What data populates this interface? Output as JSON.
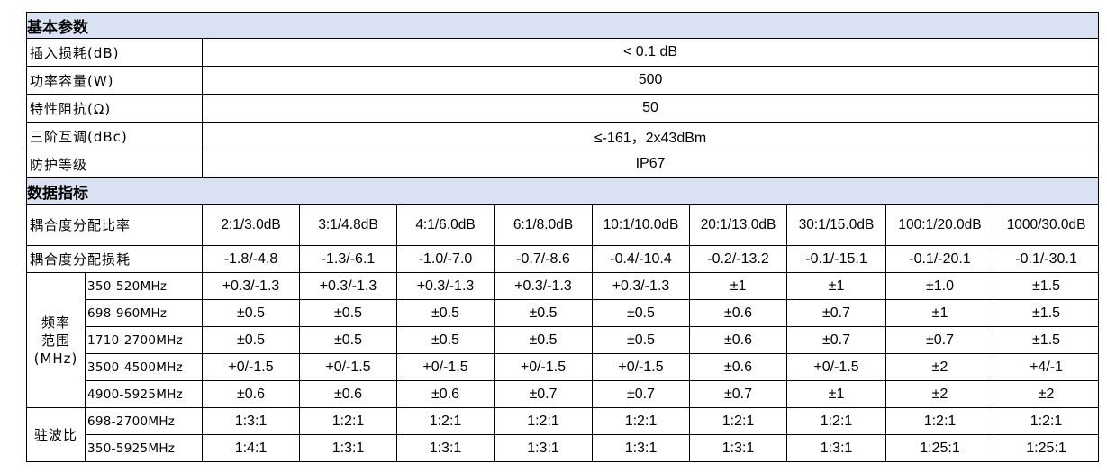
{
  "basic": {
    "title": "基本参数",
    "rows": [
      {
        "label": "插入损耗(dB)",
        "value": "< 0.1 dB"
      },
      {
        "label": "功率容量(W)",
        "value": "500"
      },
      {
        "label": "特性阻抗(Ω)",
        "value": "50"
      },
      {
        "label": "三阶互调(dBc)",
        "value": "≤-161，2x43dBm"
      },
      {
        "label": "防护等级",
        "value": "IP67"
      }
    ]
  },
  "data": {
    "title": "数据指标",
    "ratio_label": "耦合度分配比率",
    "ratios": [
      "2:1/3.0dB",
      "3:1/4.8dB",
      "4:1/6.0dB",
      "6:1/8.0dB",
      "10:1/10.0dB",
      "20:1/13.0dB",
      "30:1/15.0dB",
      "100:1/20.0dB",
      "1000/30.0dB"
    ],
    "loss_label": "耦合度分配损耗",
    "losses": [
      "-1.8/-4.8",
      "-1.3/-6.1",
      "-1.0/-7.0",
      "-0.7/-8.6",
      "-0.4/-10.4",
      "-0.2/-13.2",
      "-0.1/-15.1",
      "-0.1/-20.1",
      "-0.1/-30.1"
    ],
    "freq_group": {
      "l1": "频率",
      "l2": "范围",
      "l3": "(MHz)",
      "bands": [
        {
          "band": "350-520MHz",
          "values": [
            "+0.3/-1.3",
            "+0.3/-1.3",
            "+0.3/-1.3",
            "+0.3/-1.3",
            "+0.3/-1.3",
            "±1",
            "±1",
            "±1.0",
            "±1.5"
          ]
        },
        {
          "band": "698-960MHz",
          "values": [
            "±0.5",
            "±0.5",
            "±0.5",
            "±0.5",
            "±0.5",
            "±0.6",
            "±0.7",
            "±1",
            "±1.5"
          ]
        },
        {
          "band": "1710-2700MHz",
          "values": [
            "±0.5",
            "±0.5",
            "±0.5",
            "±0.5",
            "±0.5",
            "±0.6",
            "±0.7",
            "±0.7",
            "±1.5"
          ]
        },
        {
          "band": "3500-4500MHz",
          "values": [
            "+0/-1.5",
            "+0/-1.5",
            "+0/-1.5",
            "+0/-1.5",
            "+0/-1.5",
            "±0.6",
            "+0/-1.5",
            "±2",
            "+4/-1"
          ]
        },
        {
          "band": "4900-5925MHz",
          "values": [
            "±0.6",
            "±0.6",
            "±0.6",
            "±0.7",
            "±0.7",
            "±0.7",
            "±1",
            "±2",
            "±2"
          ]
        }
      ]
    },
    "vswr_group": {
      "label": "驻波比",
      "bands": [
        {
          "band": "698-2700MHz",
          "values": [
            "1:3:1",
            "1:2:1",
            "1:2:1",
            "1:2:1",
            "1:2:1",
            "1:2:1",
            "1:2:1",
            "1:2:1",
            "1:2:1"
          ]
        },
        {
          "band": "350-5925MHz",
          "values": [
            "1:4:1",
            "1:3:1",
            "1:3:1",
            "1:3:1",
            "1:3:1",
            "1:3:1",
            "1:3:1",
            "1:25:1",
            "1:25:1"
          ]
        }
      ]
    }
  }
}
